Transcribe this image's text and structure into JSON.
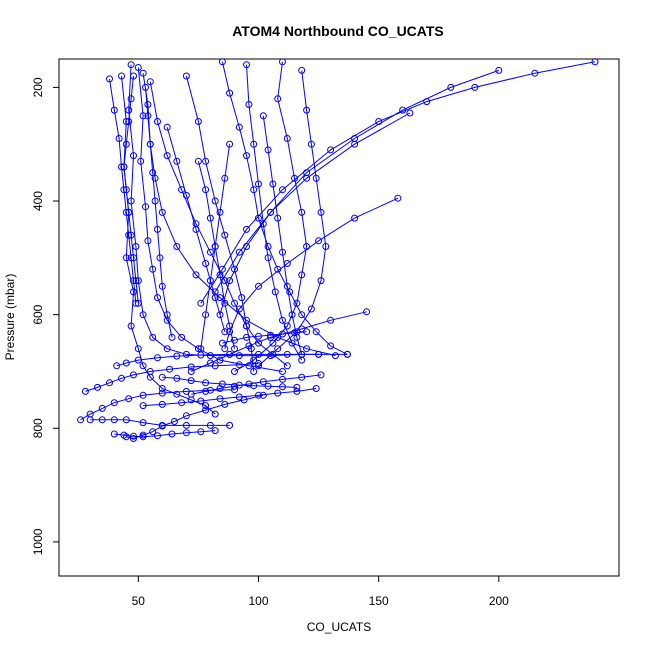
{
  "chart_data": {
    "type": "line",
    "title": "ATOM4 Northbound CO_UCATS",
    "xlabel": "CO_UCATS",
    "ylabel": "Pressure (mbar)",
    "xlim": [
      17,
      250
    ],
    "ylim": [
      1060,
      150
    ],
    "y_axis_inverted": true,
    "x_ticks": [
      50,
      100,
      150,
      200
    ],
    "x_tick_labels": [
      "50",
      "100",
      "150",
      "200"
    ],
    "y_ticks": [
      200,
      400,
      600,
      800,
      1000
    ],
    "y_tick_labels": [
      "200",
      "400",
      "600",
      "800",
      "1000"
    ],
    "grid": false,
    "legend": "none",
    "marker": "open-circle",
    "color": "#0000ff",
    "series": [
      {
        "x": [
          43,
          45,
          44,
          46,
          45,
          48,
          47,
          50,
          52,
          55,
          60,
          66,
          72,
          78,
          82
        ],
        "y": [
          180,
          260,
          340,
          420,
          500,
          560,
          620,
          660,
          690,
          710,
          730,
          740,
          750,
          760,
          775
        ]
      },
      {
        "x": [
          47,
          46,
          48,
          47,
          49,
          50,
          52,
          56,
          62,
          70,
          80,
          92,
          105,
          118,
          125
        ],
        "y": [
          160,
          240,
          320,
          400,
          480,
          540,
          600,
          640,
          660,
          670,
          672,
          672,
          672,
          670,
          670
        ]
      },
      {
        "x": [
          50,
          52,
          51,
          53,
          54,
          56,
          58,
          62,
          68,
          75,
          84,
          96,
          110
        ],
        "y": [
          165,
          250,
          330,
          410,
          470,
          520,
          570,
          610,
          640,
          660,
          680,
          690,
          700
        ]
      },
      {
        "x": [
          52,
          54,
          55,
          57,
          60,
          66,
          74,
          84,
          95,
          108,
          120,
          132
        ],
        "y": [
          175,
          230,
          300,
          360,
          420,
          480,
          530,
          570,
          610,
          640,
          660,
          672
        ]
      },
      {
        "x": [
          55,
          58,
          62,
          68,
          74,
          80,
          86,
          90,
          95,
          100,
          106,
          112
        ],
        "y": [
          190,
          260,
          320,
          380,
          440,
          490,
          540,
          580,
          620,
          650,
          670,
          690
        ]
      },
      {
        "x": [
          85,
          88,
          92,
          95,
          98,
          100,
          104,
          108,
          113,
          118,
          124,
          130,
          137
        ],
        "y": [
          155,
          210,
          270,
          320,
          380,
          430,
          480,
          520,
          560,
          600,
          630,
          655,
          670
        ]
      },
      {
        "x": [
          95,
          96,
          98,
          100,
          102,
          104,
          107,
          110,
          114,
          118
        ],
        "y": [
          160,
          230,
          300,
          370,
          440,
          500,
          560,
          610,
          650,
          680
        ]
      },
      {
        "x": [
          110,
          108,
          112,
          115,
          118,
          120,
          118,
          116,
          112,
          106,
          98,
          90
        ],
        "y": [
          155,
          220,
          290,
          360,
          420,
          480,
          530,
          580,
          620,
          650,
          680,
          700
        ]
      },
      {
        "x": [
          118,
          120,
          122,
          124,
          126,
          128,
          126,
          122,
          116,
          108,
          100
        ],
        "y": [
          170,
          240,
          300,
          360,
          420,
          480,
          540,
          590,
          630,
          660,
          690
        ]
      },
      {
        "x": [
          70,
          75,
          78,
          82,
          86,
          90,
          93,
          95,
          97,
          98
        ],
        "y": [
          180,
          260,
          330,
          400,
          460,
          520,
          570,
          620,
          660,
          700
        ]
      },
      {
        "x": [
          240,
          215,
          190,
          170,
          150,
          130,
          110,
          95,
          85,
          76
        ],
        "y": [
          155,
          175,
          200,
          225,
          260,
          310,
          380,
          450,
          520,
          580
        ]
      },
      {
        "x": [
          200,
          180,
          160,
          140,
          120,
          105,
          92,
          82
        ],
        "y": [
          170,
          200,
          240,
          290,
          350,
          420,
          490,
          560
        ]
      },
      {
        "x": [
          163,
          140,
          120,
          105,
          95,
          88,
          84
        ],
        "y": [
          245,
          300,
          360,
          420,
          480,
          540,
          600
        ]
      },
      {
        "x": [
          158,
          140,
          125,
          112,
          100,
          92,
          88,
          86
        ],
        "y": [
          395,
          430,
          470,
          510,
          550,
          590,
          630,
          660
        ]
      },
      {
        "x": [
          145,
          130,
          118,
          105,
          96,
          88,
          80,
          72
        ],
        "y": [
          595,
          610,
          625,
          640,
          655,
          670,
          685,
          700
        ]
      },
      {
        "x": [
          41,
          45,
          50,
          58,
          66,
          76,
          88,
          100,
          112,
          125,
          137
        ],
        "y": [
          690,
          685,
          680,
          676,
          673,
          671,
          670,
          670,
          670,
          670,
          670
        ]
      },
      {
        "x": [
          28,
          33,
          38,
          43,
          48,
          55,
          63,
          72,
          82,
          92,
          100
        ],
        "y": [
          735,
          728,
          720,
          712,
          706,
          700,
          696,
          692,
          690,
          688,
          686
        ]
      },
      {
        "x": [
          26,
          30,
          35,
          40,
          46,
          52,
          60,
          70,
          80,
          90
        ],
        "y": [
          785,
          775,
          765,
          755,
          748,
          742,
          738,
          735,
          733,
          732
        ]
      },
      {
        "x": [
          30,
          35,
          40,
          45,
          52,
          60,
          70,
          80,
          88
        ],
        "y": [
          785,
          785,
          785,
          785,
          790,
          795,
          795,
          795,
          795
        ]
      },
      {
        "x": [
          40,
          44,
          48,
          52,
          58,
          64,
          70,
          76,
          82
        ],
        "y": [
          810,
          812,
          814,
          815,
          813,
          810,
          808,
          806,
          804
        ]
      },
      {
        "x": [
          45,
          48,
          52,
          56,
          60,
          65,
          70,
          78,
          86,
          94,
          102
        ],
        "y": [
          815,
          818,
          812,
          806,
          796,
          788,
          778,
          768,
          758,
          750,
          742
        ]
      },
      {
        "x": [
          52,
          60,
          68,
          76,
          84,
          92,
          100,
          108,
          116,
          124
        ],
        "y": [
          760,
          758,
          755,
          752,
          748,
          745,
          742,
          738,
          735,
          730
        ]
      },
      {
        "x": [
          60,
          66,
          72,
          78,
          85,
          92,
          98,
          104,
          110,
          116
        ],
        "y": [
          710,
          712,
          716,
          720,
          722,
          724,
          725,
          726,
          727,
          728
        ]
      },
      {
        "x": [
          72,
          78,
          84,
          90,
          96,
          102,
          110,
          118,
          126
        ],
        "y": [
          740,
          735,
          730,
          726,
          722,
          718,
          714,
          710,
          706
        ]
      },
      {
        "x": [
          85,
          90,
          95,
          100,
          105,
          110,
          115,
          120
        ],
        "y": [
          650,
          645,
          640,
          638,
          636,
          634,
          632,
          630
        ]
      },
      {
        "x": [
          38,
          40,
          42,
          43,
          44,
          45,
          46,
          47,
          48,
          49
        ],
        "y": [
          185,
          240,
          290,
          340,
          380,
          420,
          460,
          500,
          540,
          580
        ]
      },
      {
        "x": [
          48,
          47,
          46,
          45,
          44,
          45,
          46,
          47,
          48,
          49,
          50
        ],
        "y": [
          180,
          220,
          260,
          300,
          340,
          380,
          420,
          460,
          500,
          540,
          580
        ]
      },
      {
        "x": [
          53,
          54,
          55,
          56,
          57,
          58,
          59,
          60,
          62,
          64
        ],
        "y": [
          200,
          250,
          300,
          350,
          400,
          450,
          500,
          550,
          600,
          640
        ]
      },
      {
        "x": [
          75,
          78,
          80,
          82,
          84,
          86,
          88,
          90
        ],
        "y": [
          330,
          380,
          430,
          480,
          530,
          580,
          620,
          660
        ]
      },
      {
        "x": [
          102,
          104,
          106,
          108,
          110,
          112,
          114,
          116,
          118
        ],
        "y": [
          250,
          310,
          370,
          430,
          490,
          550,
          600,
          640,
          670
        ]
      },
      {
        "x": [
          62,
          66,
          70,
          74,
          78,
          82,
          86
        ],
        "y": [
          270,
          330,
          390,
          450,
          510,
          570,
          630
        ]
      },
      {
        "x": [
          88,
          86,
          84,
          82,
          80,
          78,
          76
        ],
        "y": [
          300,
          360,
          420,
          480,
          540,
          600,
          660
        ]
      }
    ]
  }
}
